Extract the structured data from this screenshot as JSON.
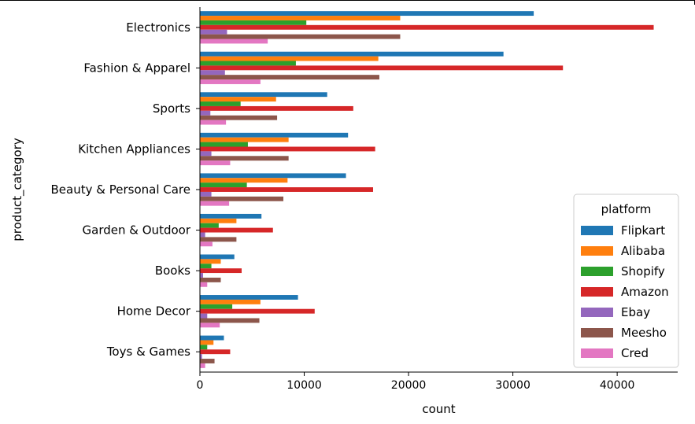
{
  "chart_data": {
    "type": "bar",
    "orientation": "horizontal",
    "xlabel": "count",
    "ylabel": "product_category",
    "xlim": [
      0,
      45800
    ],
    "xticks": [
      0,
      10000,
      20000,
      30000,
      40000
    ],
    "grid": false,
    "legend_title": "platform",
    "legend_position": "lower-right",
    "categories": [
      "Electronics",
      "Fashion & Apparel",
      "Sports",
      "Kitchen Appliances",
      "Beauty & Personal Care",
      "Garden & Outdoor",
      "Books",
      "Home Decor",
      "Toys & Games"
    ],
    "series": [
      {
        "name": "Flipkart",
        "color": "#1f77b4",
        "values": [
          32000,
          29100,
          12200,
          14200,
          14000,
          5900,
          3300,
          9400,
          2300
        ]
      },
      {
        "name": "Alibaba",
        "color": "#ff7f0e",
        "values": [
          19200,
          17100,
          7300,
          8500,
          8400,
          3500,
          2000,
          5800,
          1300
        ]
      },
      {
        "name": "Shopify",
        "color": "#2ca02c",
        "values": [
          10200,
          9200,
          3900,
          4600,
          4500,
          1800,
          1100,
          3100,
          700
        ]
      },
      {
        "name": "Amazon",
        "color": "#d62728",
        "values": [
          43500,
          34800,
          14700,
          16800,
          16600,
          7000,
          4000,
          11000,
          2900
        ]
      },
      {
        "name": "Ebay",
        "color": "#9467bd",
        "values": [
          2600,
          2400,
          1000,
          1100,
          1100,
          500,
          300,
          700,
          200
        ]
      },
      {
        "name": "Meesho",
        "color": "#8c564b",
        "values": [
          19200,
          17200,
          7400,
          8500,
          8000,
          3500,
          2000,
          5700,
          1400
        ]
      },
      {
        "name": "Cred",
        "color": "#e377c2",
        "values": [
          6500,
          5800,
          2500,
          2900,
          2800,
          1200,
          700,
          1900,
          500
        ]
      }
    ]
  }
}
